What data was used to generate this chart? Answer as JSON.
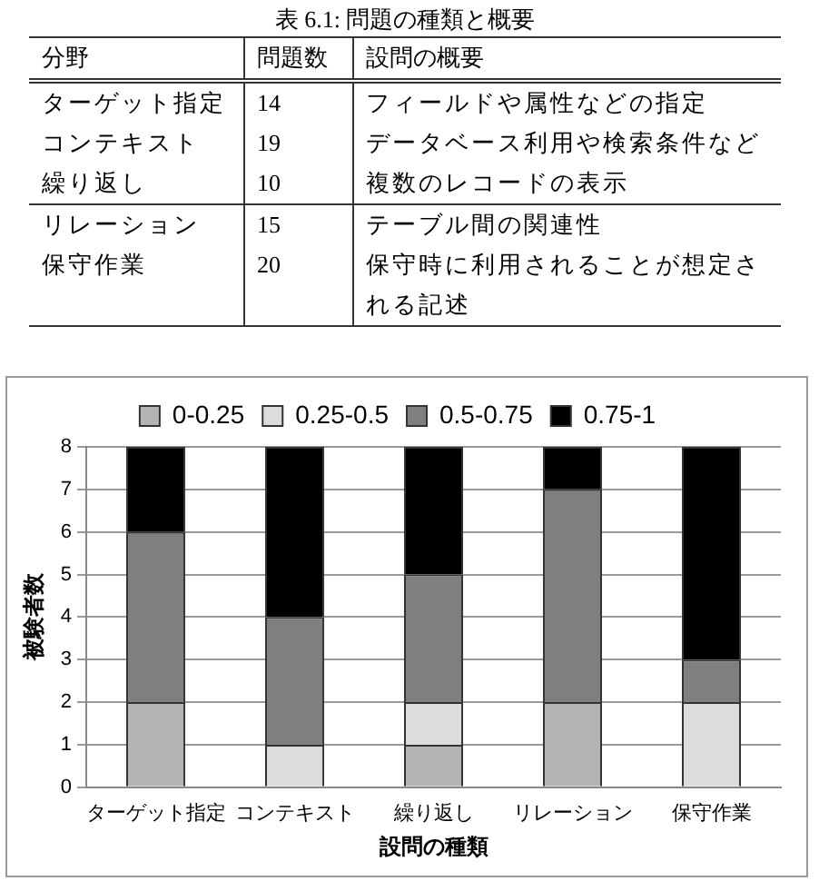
{
  "chart_data": [
    {
      "type": "other",
      "title": "表 6.1: 問題の種類と概要",
      "categories": [
        "ターゲット指定",
        "コンテキスト",
        "繰り返し",
        "リレーション",
        "保守作業"
      ],
      "annotations": [
        "分野",
        "問題数",
        "設問の概要",
        "14",
        "フィールドや属性などの指定",
        "19",
        "データベース利用や検索条件など",
        "10",
        "複数のレコードの表示",
        "15",
        "テーブル間の関連性",
        "20",
        "保守時に利用されることが想定される記述"
      ]
    },
    {
      "type": "bar",
      "stacked": true,
      "xlabel": "設問の種類",
      "ylabel": "被験者数",
      "legend": "top",
      "grid": "y",
      "categories": [
        "ターゲット指定",
        "コンテキスト",
        "繰り返し",
        "リレーション",
        "保守作業"
      ],
      "ylim": [
        0,
        8
      ],
      "yticks": [
        0,
        1,
        2,
        3,
        4,
        5,
        6,
        7,
        8
      ],
      "series": [
        {
          "name": "0-0.25",
          "color": "#b4b4b4",
          "values": [
            2,
            0,
            1,
            2,
            0
          ]
        },
        {
          "name": "0.25-0.5",
          "color": "#dcdcdc",
          "values": [
            0,
            1,
            1,
            0,
            2
          ]
        },
        {
          "name": "0.5-0.75",
          "color": "#7f7f7f",
          "values": [
            4,
            3,
            3,
            5,
            1
          ]
        },
        {
          "name": "0.75-1",
          "color": "#000000",
          "values": [
            2,
            4,
            3,
            1,
            5
          ]
        }
      ]
    }
  ]
}
